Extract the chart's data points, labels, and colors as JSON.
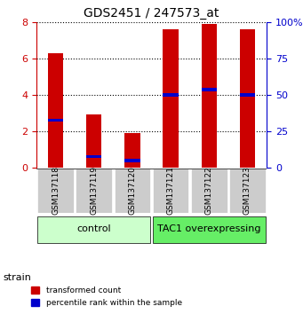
{
  "title": "GDS2451 / 247573_at",
  "categories": [
    "GSM137118",
    "GSM137119",
    "GSM137120",
    "GSM137121",
    "GSM137122",
    "GSM137123"
  ],
  "red_values": [
    6.3,
    2.9,
    1.9,
    7.6,
    7.9,
    7.6
  ],
  "blue_values": [
    2.6,
    0.6,
    0.4,
    4.0,
    4.3,
    4.0
  ],
  "ylim_left": [
    0,
    8
  ],
  "ylim_right": [
    0,
    100
  ],
  "yticks_left": [
    0,
    2,
    4,
    6,
    8
  ],
  "yticks_right": [
    0,
    25,
    50,
    75,
    100
  ],
  "ytick_labels_right": [
    "0",
    "25",
    "50",
    "75",
    "100%"
  ],
  "bar_color": "#cc0000",
  "blue_color": "#0000cc",
  "group1_label": "control",
  "group2_label": "TAC1 overexpressing",
  "group1_bg": "#ccffcc",
  "group2_bg": "#66ee66",
  "group1_indices": [
    0,
    1,
    2
  ],
  "group2_indices": [
    3,
    4,
    5
  ],
  "xlabel_color": "#cc0000",
  "ylabel_left_color": "#cc0000",
  "ylabel_right_color": "#0000cc",
  "bar_width": 0.4,
  "legend_red": "transformed count",
  "legend_blue": "percentile rank within the sample",
  "strain_label": "strain",
  "grid_color": "#aaaaaa",
  "tick_bg": "#cccccc"
}
